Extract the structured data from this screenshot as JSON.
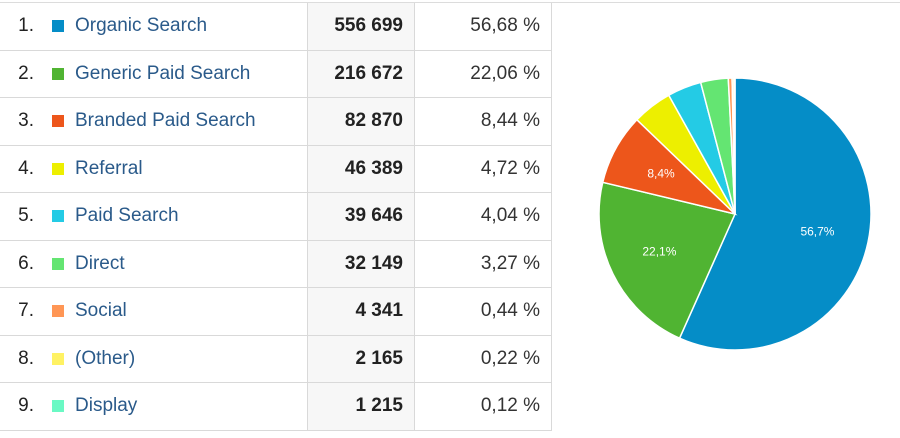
{
  "table": {
    "rows": [
      {
        "rank": "1.",
        "name": "Organic Search",
        "color": "#058dc7",
        "value": "556 699",
        "percent": "56,68 %"
      },
      {
        "rank": "2.",
        "name": "Generic Paid Search",
        "color": "#50b432",
        "value": "216 672",
        "percent": "22,06 %"
      },
      {
        "rank": "3.",
        "name": "Branded Paid Search",
        "color": "#ed561b",
        "value": "82 870",
        "percent": "8,44 %"
      },
      {
        "rank": "4.",
        "name": "Referral",
        "color": "#edef00",
        "value": "46 389",
        "percent": "4,72 %"
      },
      {
        "rank": "5.",
        "name": "Paid Search",
        "color": "#24cbe5",
        "value": "39 646",
        "percent": "4,04 %"
      },
      {
        "rank": "6.",
        "name": "Direct",
        "color": "#64e572",
        "value": "32 149",
        "percent": "3,27 %"
      },
      {
        "rank": "7.",
        "name": "Social",
        "color": "#ff9655",
        "value": "4 341",
        "percent": "0,44 %"
      },
      {
        "rank": "8.",
        "name": "(Other)",
        "color": "#fff263",
        "value": "2 165",
        "percent": "0,22 %"
      },
      {
        "rank": "9.",
        "name": "Display",
        "color": "#6af9c4",
        "value": "1 215",
        "percent": "0,12 %"
      }
    ]
  },
  "chart_data": {
    "type": "pie",
    "title": "",
    "categories": [
      "Organic Search",
      "Generic Paid Search",
      "Branded Paid Search",
      "Referral",
      "Paid Search",
      "Direct",
      "Social",
      "(Other)",
      "Display"
    ],
    "values": [
      556699,
      216672,
      82870,
      46389,
      39646,
      32149,
      4341,
      2165,
      1215
    ],
    "percentages": [
      56.68,
      22.06,
      8.44,
      4.72,
      4.04,
      3.27,
      0.44,
      0.22,
      0.12
    ],
    "colors": [
      "#058dc7",
      "#50b432",
      "#ed561b",
      "#edef00",
      "#24cbe5",
      "#64e572",
      "#ff9655",
      "#fff263",
      "#6af9c4"
    ],
    "slice_labels": [
      "56,7%",
      "22,1%",
      "8,4%",
      "",
      "",
      "",
      "",
      "",
      ""
    ],
    "start_angle_deg": 0,
    "direction": "clockwise",
    "legend_position": "table-left"
  }
}
